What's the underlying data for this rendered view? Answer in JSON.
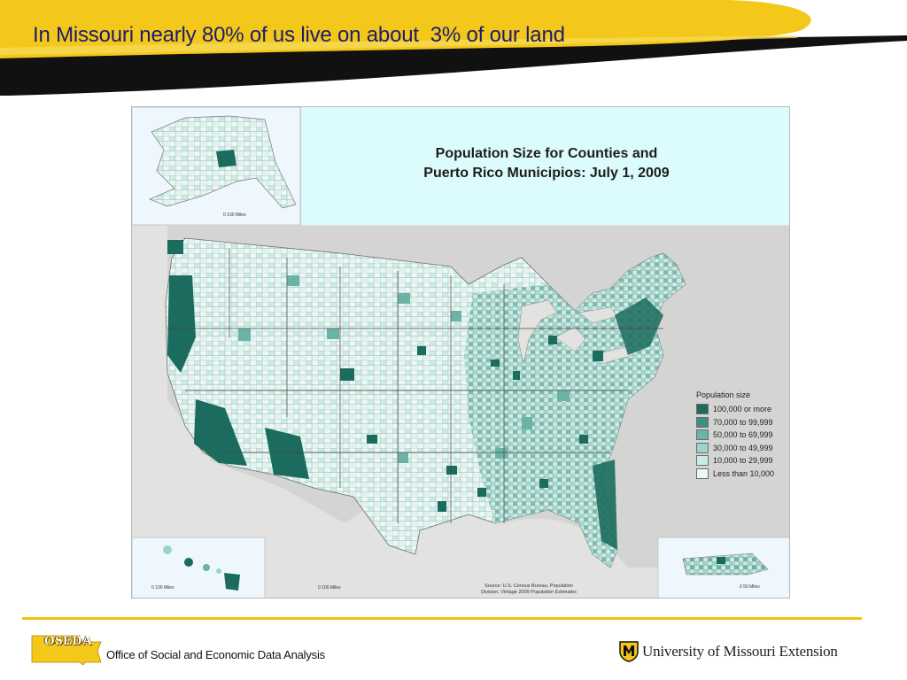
{
  "slide": {
    "title": "In Missouri nearly 80% of us live on about  3% of our land"
  },
  "map": {
    "title_line1": "Population Size for Counties and",
    "title_line2": "Puerto Rico Municipios: July 1, 2009",
    "insets": {
      "alaska_scale": "0   100 Miles",
      "hawaii_scale": "0       100 Miles",
      "lower48_scale": "0       100 Miles",
      "puerto_rico_scale": "0      50 Miles"
    },
    "legend": {
      "title": "Population size",
      "items": [
        {
          "label": "100,000 or more",
          "color": "#1b6b5e"
        },
        {
          "label": "70,000 to 99,999",
          "color": "#3e8f83"
        },
        {
          "label": "50,000 to 69,999",
          "color": "#6bb3a6"
        },
        {
          "label": "30,000 to 49,999",
          "color": "#9bd4c8"
        },
        {
          "label": "10,000 to 29,999",
          "color": "#c9ece4"
        },
        {
          "label": "Less than 10,000",
          "color": "#ebf8f6"
        }
      ]
    },
    "source_line1": "Source: U.S. Census Bureau, Population",
    "source_line2": "Division, Vintage 2009 Population Estimates"
  },
  "footer": {
    "logo_text": "OSEDA",
    "org_name": "Office of Social and Economic Data Analysis",
    "university": "University of Missouri Extension"
  },
  "colors": {
    "gold": "#f3c81a",
    "title_text": "#1c1c6e",
    "water_background": "#e2e2e0",
    "inset_background": "#eef7fd"
  }
}
